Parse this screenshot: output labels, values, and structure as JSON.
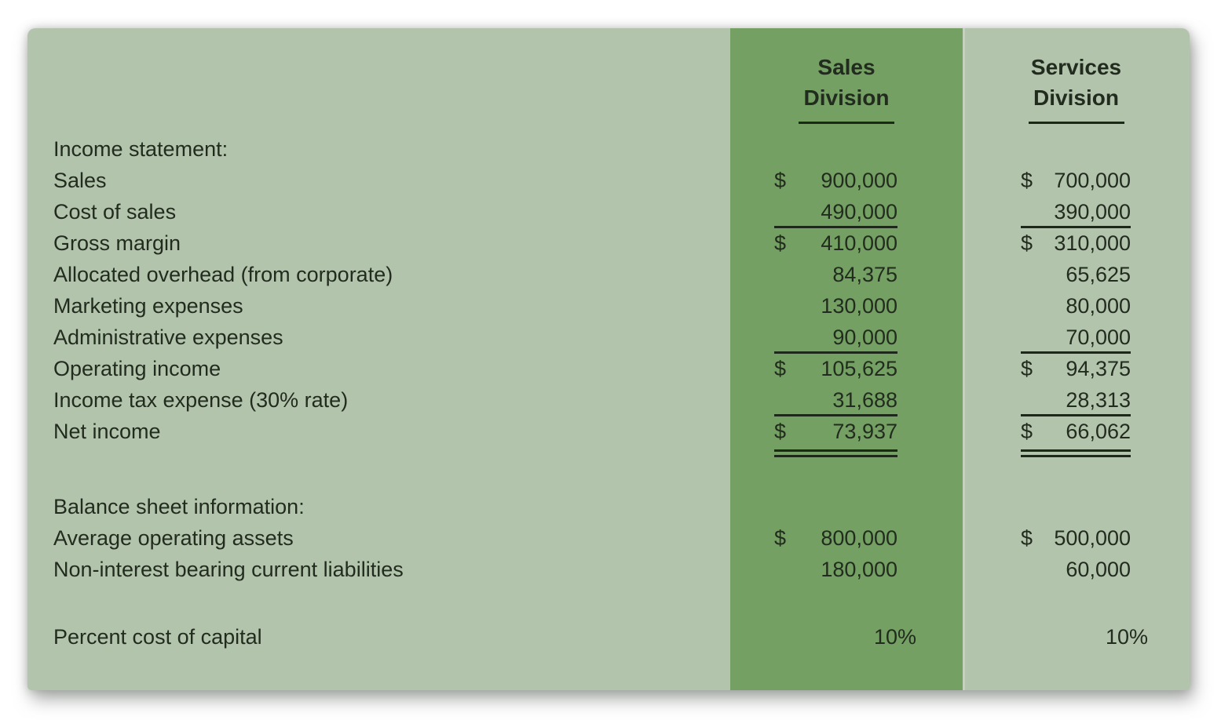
{
  "columns": [
    {
      "line1": "Sales",
      "line2": "Division"
    },
    {
      "line1": "Services",
      "line2": "Division"
    }
  ],
  "sections": [
    {
      "heading": "Income statement:",
      "gap_before": 0,
      "rows": [
        {
          "label": "Sales",
          "sales_d": "$",
          "sales_v": "900,000",
          "services_d": "$",
          "services_v": "700,000",
          "rule": "none"
        },
        {
          "label": "Cost of sales",
          "sales_d": "",
          "sales_v": "490,000",
          "services_d": "",
          "services_v": "390,000",
          "rule": "single"
        },
        {
          "label": "Gross margin",
          "sales_d": "$",
          "sales_v": "410,000",
          "services_d": "$",
          "services_v": "310,000",
          "rule": "none"
        },
        {
          "label": "Allocated overhead (from corporate)",
          "sales_d": "",
          "sales_v": "84,375",
          "services_d": "",
          "services_v": "65,625",
          "rule": "none"
        },
        {
          "label": "Marketing expenses",
          "sales_d": "",
          "sales_v": "130,000",
          "services_d": "",
          "services_v": "80,000",
          "rule": "none"
        },
        {
          "label": "Administrative expenses",
          "sales_d": "",
          "sales_v": "90,000",
          "services_d": "",
          "services_v": "70,000",
          "rule": "single"
        },
        {
          "label": "Operating income",
          "sales_d": "$",
          "sales_v": "105,625",
          "services_d": "$",
          "services_v": "94,375",
          "rule": "none"
        },
        {
          "label": "Income tax expense (30% rate)",
          "sales_d": "",
          "sales_v": "31,688",
          "services_d": "",
          "services_v": "28,313",
          "rule": "single"
        },
        {
          "label": "Net income",
          "sales_d": "$",
          "sales_v": "73,937",
          "services_d": "$",
          "services_v": "66,062",
          "rule": "double"
        }
      ]
    },
    {
      "heading": "Balance sheet information:",
      "gap_before": 38,
      "rows": [
        {
          "label": "Average operating assets",
          "sales_d": "$",
          "sales_v": "800,000",
          "services_d": "$",
          "services_v": "500,000",
          "rule": "none"
        },
        {
          "label": "Non-interest bearing current liabilities",
          "sales_d": "",
          "sales_v": "180,000",
          "services_d": "",
          "services_v": "60,000",
          "rule": "none"
        }
      ]
    }
  ],
  "capital": {
    "label": "Percent cost of capital",
    "sales_v": "10%",
    "services_v": "10%",
    "gap_before": 46
  },
  "colors": {
    "page_bg": "#ffffff",
    "panel_bg": "#b3c4ad",
    "highlight_band_bg": "#74a063",
    "band_seam": "#c5d1be",
    "text": "#222c1e",
    "rule": "#1c2818"
  }
}
